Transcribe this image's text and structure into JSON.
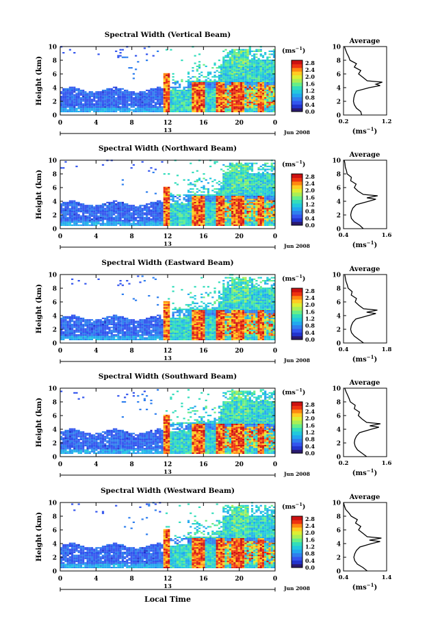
{
  "xlabel": "Local Time",
  "common": {
    "ylabel": "Height (km)",
    "x_ticks": [
      "0",
      "4",
      "8",
      "12",
      "16",
      "20",
      "0"
    ],
    "date_marker": "13",
    "date_label": "Jun 2008",
    "cb_unit": "(ms",
    "cb_unit_sup": "−1",
    "cb_unit_close": ")",
    "cb_ticks": [
      "0.0",
      "0.4",
      "0.8",
      "1.2",
      "1.6",
      "2.0",
      "2.4",
      "2.8"
    ],
    "y_ticks": [
      "0",
      "2",
      "4",
      "6",
      "8",
      "10"
    ],
    "avg_title": "Average",
    "avg_unit": "(ms",
    "avg_unit_sup": "−1",
    "avg_unit_close": ")"
  },
  "colormap": [
    "#2a1a6e",
    "#2233cc",
    "#3355ee",
    "#2f7fee",
    "#22a8ee",
    "#22c8dd",
    "#33ddbb",
    "#66ee88",
    "#aaee55",
    "#ddee33",
    "#ffcc22",
    "#ff8811",
    "#ee3311",
    "#cc1111"
  ],
  "chart_data": [
    {
      "type": "heatmap",
      "title": "Spectral Width (Vertical Beam)",
      "x_range": [
        0,
        24
      ],
      "y_range": [
        0,
        10
      ],
      "clim": [
        0,
        3
      ],
      "avg_x_ticks": [
        "0.2",
        "1.2"
      ],
      "avg_xlim": [
        0.2,
        1.2
      ],
      "avg_profile": [
        [
          0.62,
          0
        ],
        [
          0.6,
          0.5
        ],
        [
          0.5,
          1
        ],
        [
          0.45,
          1.5
        ],
        [
          0.43,
          2
        ],
        [
          0.44,
          2.5
        ],
        [
          0.46,
          3
        ],
        [
          0.5,
          3.5
        ],
        [
          0.8,
          4
        ],
        [
          1.05,
          4.3
        ],
        [
          0.95,
          4.5
        ],
        [
          1.1,
          4.8
        ],
        [
          0.75,
          5
        ],
        [
          0.65,
          5.5
        ],
        [
          0.55,
          6
        ],
        [
          0.6,
          6.5
        ],
        [
          0.45,
          7
        ],
        [
          0.5,
          7.5
        ],
        [
          0.35,
          8
        ],
        [
          0.32,
          8.5
        ],
        [
          0.28,
          9
        ],
        [
          0.25,
          9.5
        ],
        [
          0.22,
          10
        ]
      ]
    },
    {
      "type": "heatmap",
      "title": "Spectral Width (Northward Beam)",
      "x_range": [
        0,
        24
      ],
      "y_range": [
        0,
        10
      ],
      "clim": [
        0,
        3
      ],
      "avg_x_ticks": [
        "0.4",
        "1.6"
      ],
      "avg_xlim": [
        0.4,
        1.6
      ],
      "avg_profile": [
        [
          0.95,
          0
        ],
        [
          0.85,
          0.5
        ],
        [
          0.7,
          1
        ],
        [
          0.62,
          1.5
        ],
        [
          0.6,
          2
        ],
        [
          0.62,
          2.5
        ],
        [
          0.66,
          3
        ],
        [
          0.75,
          3.5
        ],
        [
          1.1,
          4
        ],
        [
          1.3,
          4.3
        ],
        [
          1.05,
          4.5
        ],
        [
          1.35,
          4.8
        ],
        [
          0.95,
          5
        ],
        [
          0.8,
          5.5
        ],
        [
          0.7,
          6
        ],
        [
          0.75,
          6.5
        ],
        [
          0.6,
          7
        ],
        [
          0.62,
          7.5
        ],
        [
          0.5,
          8
        ],
        [
          0.48,
          8.5
        ],
        [
          0.45,
          9
        ],
        [
          0.44,
          9.5
        ],
        [
          0.42,
          10
        ]
      ]
    },
    {
      "type": "heatmap",
      "title": "Spectral Width (Eastward Beam)",
      "x_range": [
        0,
        24
      ],
      "y_range": [
        0,
        10
      ],
      "clim": [
        0,
        3
      ],
      "avg_x_ticks": [
        "0.4",
        "1.8"
      ],
      "avg_xlim": [
        0.4,
        1.8
      ],
      "avg_profile": [
        [
          1.05,
          0
        ],
        [
          0.9,
          0.5
        ],
        [
          0.75,
          1
        ],
        [
          0.66,
          1.5
        ],
        [
          0.63,
          2
        ],
        [
          0.65,
          2.5
        ],
        [
          0.7,
          3
        ],
        [
          0.8,
          3.5
        ],
        [
          1.2,
          4
        ],
        [
          1.45,
          4.3
        ],
        [
          1.15,
          4.5
        ],
        [
          1.5,
          4.8
        ],
        [
          1.05,
          5
        ],
        [
          0.9,
          5.5
        ],
        [
          0.78,
          6
        ],
        [
          0.82,
          6.5
        ],
        [
          0.65,
          7
        ],
        [
          0.68,
          7.5
        ],
        [
          0.55,
          8
        ],
        [
          0.52,
          8.5
        ],
        [
          0.48,
          9
        ],
        [
          0.46,
          9.5
        ],
        [
          0.44,
          10
        ]
      ]
    },
    {
      "type": "heatmap",
      "title": "Spectral Width (Southward Beam)",
      "x_range": [
        0,
        24
      ],
      "y_range": [
        0,
        10
      ],
      "clim": [
        0,
        3
      ],
      "avg_x_ticks": [
        "0.2",
        "1.6"
      ],
      "avg_xlim": [
        0.2,
        1.6
      ],
      "avg_profile": [
        [
          0.95,
          0
        ],
        [
          0.8,
          0.5
        ],
        [
          0.65,
          1
        ],
        [
          0.58,
          1.5
        ],
        [
          0.55,
          2
        ],
        [
          0.57,
          2.5
        ],
        [
          0.62,
          3
        ],
        [
          0.72,
          3.5
        ],
        [
          1.1,
          4
        ],
        [
          1.35,
          4.3
        ],
        [
          1.05,
          4.5
        ],
        [
          1.4,
          4.8
        ],
        [
          0.95,
          5
        ],
        [
          0.8,
          5.5
        ],
        [
          0.68,
          6
        ],
        [
          0.72,
          6.5
        ],
        [
          0.55,
          7
        ],
        [
          0.58,
          7.5
        ],
        [
          0.42,
          8
        ],
        [
          0.38,
          8.5
        ],
        [
          0.33,
          9
        ],
        [
          0.28,
          9.5
        ],
        [
          0.24,
          10
        ]
      ]
    },
    {
      "type": "heatmap",
      "title": "Spectral Width (Westward Beam)",
      "x_range": [
        0,
        24
      ],
      "y_range": [
        0,
        10
      ],
      "clim": [
        0,
        3
      ],
      "avg_x_ticks": [
        "0.4",
        "1.4"
      ],
      "avg_xlim": [
        0.4,
        1.4
      ],
      "avg_profile": [
        [
          0.95,
          0
        ],
        [
          0.85,
          0.5
        ],
        [
          0.72,
          1
        ],
        [
          0.66,
          1.5
        ],
        [
          0.64,
          2
        ],
        [
          0.66,
          2.5
        ],
        [
          0.7,
          3
        ],
        [
          0.78,
          3.5
        ],
        [
          1.05,
          4
        ],
        [
          1.25,
          4.3
        ],
        [
          1.0,
          4.5
        ],
        [
          1.28,
          4.8
        ],
        [
          0.95,
          5
        ],
        [
          0.85,
          5.5
        ],
        [
          0.75,
          6
        ],
        [
          0.8,
          6.5
        ],
        [
          0.68,
          7
        ],
        [
          0.72,
          7.5
        ],
        [
          0.58,
          8
        ],
        [
          0.52,
          8.5
        ],
        [
          0.45,
          9
        ],
        [
          0.42,
          9.5
        ],
        [
          0.4,
          10
        ]
      ]
    }
  ]
}
